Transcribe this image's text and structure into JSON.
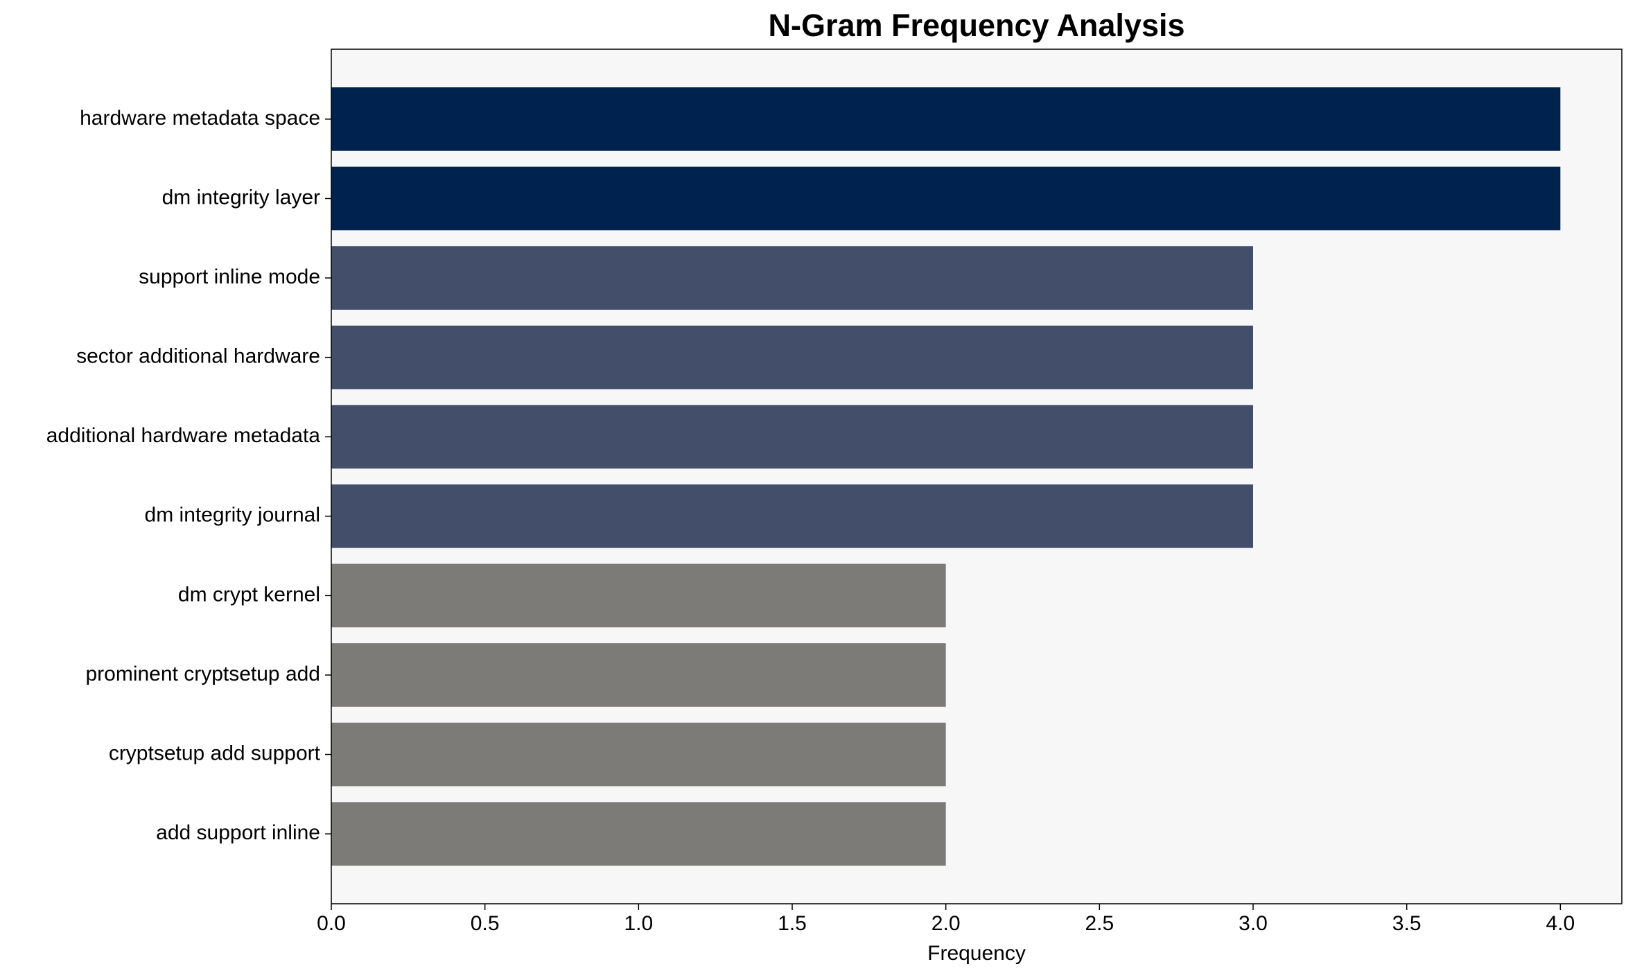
{
  "chart_data": {
    "type": "bar",
    "orientation": "horizontal",
    "title": "N-Gram Frequency Analysis",
    "xlabel": "Frequency",
    "categories": [
      "hardware metadata space",
      "dm integrity layer",
      "support inline mode",
      "sector additional hardware",
      "additional hardware metadata",
      "dm integrity journal",
      "dm crypt kernel",
      "prominent cryptsetup add",
      "cryptsetup add support",
      "add support inline"
    ],
    "values": [
      4,
      4,
      3,
      3,
      3,
      3,
      2,
      2,
      2,
      2
    ],
    "colors": [
      "#00224e",
      "#00224e",
      "#434e6b",
      "#434e6b",
      "#434e6b",
      "#434e6b",
      "#7c7b78",
      "#7c7b78",
      "#7c7b78",
      "#7c7b78"
    ],
    "xlim": [
      0,
      4.2
    ],
    "xticks": [
      {
        "value": 0,
        "label": "0.0"
      },
      {
        "value": 0.5,
        "label": "0.5"
      },
      {
        "value": 1,
        "label": "1.0"
      },
      {
        "value": 1.5,
        "label": "1.5"
      },
      {
        "value": 2,
        "label": "2.0"
      },
      {
        "value": 2.5,
        "label": "2.5"
      },
      {
        "value": 3,
        "label": "3.0"
      },
      {
        "value": 3.5,
        "label": "3.5"
      },
      {
        "value": 4,
        "label": "4.0"
      }
    ],
    "background": "#f7f7f7",
    "grid": false
  }
}
